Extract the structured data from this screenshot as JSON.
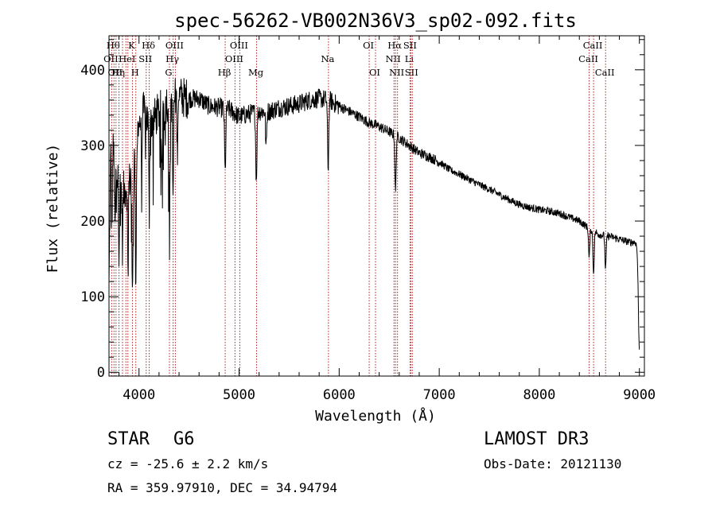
{
  "chart_data": {
    "type": "line",
    "title": "spec-56262-VB002N36V3_sp02-092.fits",
    "xlabel": "Wavelength (Å)",
    "ylabel": "Flux (relative)",
    "xlim": [
      3700,
      9050
    ],
    "ylim": [
      -5,
      445
    ],
    "xticks": [
      4000,
      5000,
      6000,
      7000,
      8000,
      9000
    ],
    "yticks": [
      0,
      100,
      200,
      300,
      400
    ],
    "continuum": [
      [
        3700,
        110
      ],
      [
        3720,
        320
      ],
      [
        3760,
        275
      ],
      [
        3800,
        245
      ],
      [
        3850,
        240
      ],
      [
        3900,
        250
      ],
      [
        3950,
        280
      ],
      [
        4000,
        330
      ],
      [
        4050,
        345
      ],
      [
        4100,
        330
      ],
      [
        4150,
        335
      ],
      [
        4200,
        345
      ],
      [
        4300,
        360
      ],
      [
        4400,
        365
      ],
      [
        4500,
        362
      ],
      [
        4600,
        362
      ],
      [
        4700,
        352
      ],
      [
        4800,
        350
      ],
      [
        4900,
        348
      ],
      [
        5000,
        338
      ],
      [
        5100,
        342
      ],
      [
        5200,
        345
      ],
      [
        5300,
        345
      ],
      [
        5400,
        350
      ],
      [
        5500,
        352
      ],
      [
        5600,
        355
      ],
      [
        5700,
        360
      ],
      [
        5800,
        362
      ],
      [
        5900,
        360
      ],
      [
        6000,
        352
      ],
      [
        6100,
        345
      ],
      [
        6200,
        338
      ],
      [
        6300,
        330
      ],
      [
        6400,
        325
      ],
      [
        6500,
        318
      ],
      [
        6600,
        310
      ],
      [
        6700,
        300
      ],
      [
        6800,
        290
      ],
      [
        6900,
        285
      ],
      [
        7000,
        278
      ],
      [
        7100,
        268
      ],
      [
        7200,
        262
      ],
      [
        7300,
        255
      ],
      [
        7400,
        248
      ],
      [
        7500,
        242
      ],
      [
        7600,
        235
      ],
      [
        7700,
        228
      ],
      [
        7800,
        222
      ],
      [
        7900,
        218
      ],
      [
        8000,
        215
      ],
      [
        8100,
        213
      ],
      [
        8200,
        210
      ],
      [
        8300,
        205
      ],
      [
        8400,
        200
      ],
      [
        8500,
        190
      ],
      [
        8600,
        182
      ],
      [
        8700,
        180
      ],
      [
        8800,
        176
      ],
      [
        8900,
        172
      ],
      [
        8960,
        172
      ],
      [
        9000,
        160
      ]
    ],
    "absorption_features": [
      {
        "x": 3728,
        "depth": 120,
        "width": 5
      },
      {
        "x": 3760,
        "depth": 90,
        "width": 4
      },
      {
        "x": 3800,
        "depth": 80,
        "width": 4
      },
      {
        "x": 3835,
        "depth": 75,
        "width": 4
      },
      {
        "x": 3889,
        "depth": 110,
        "width": 4
      },
      {
        "x": 3934,
        "depth": 175,
        "width": 5
      },
      {
        "x": 3968,
        "depth": 175,
        "width": 5
      },
      {
        "x": 4026,
        "depth": 70,
        "width": 4
      },
      {
        "x": 4101,
        "depth": 110,
        "width": 4
      },
      {
        "x": 4227,
        "depth": 90,
        "width": 4
      },
      {
        "x": 4305,
        "depth": 170,
        "width": 5
      },
      {
        "x": 4340,
        "depth": 130,
        "width": 5
      },
      {
        "x": 4383,
        "depth": 70,
        "width": 4
      },
      {
        "x": 4861,
        "depth": 85,
        "width": 6
      },
      {
        "x": 5172,
        "depth": 90,
        "width": 6
      },
      {
        "x": 5270,
        "depth": 50,
        "width": 5
      },
      {
        "x": 5890,
        "depth": 90,
        "width": 6
      },
      {
        "x": 6563,
        "depth": 75,
        "width": 6
      },
      {
        "x": 8498,
        "depth": 40,
        "width": 6
      },
      {
        "x": 8542,
        "depth": 55,
        "width": 6
      },
      {
        "x": 8662,
        "depth": 45,
        "width": 6
      },
      {
        "x": 9000,
        "depth": 130,
        "width": 10
      }
    ],
    "line_markers": [
      {
        "x": 3727,
        "label": "OII",
        "row": 1
      },
      {
        "x": 3750,
        "label": "Hθ",
        "row": 0
      },
      {
        "x": 3770,
        "label": "OII",
        "row": 2
      },
      {
        "x": 3800,
        "label": "Hη",
        "row": 2
      },
      {
        "x": 3835,
        "label": "",
        "row": 0
      },
      {
        "x": 3869,
        "label": "",
        "row": 1
      },
      {
        "x": 3889,
        "label": "HeI",
        "row": 1
      },
      {
        "x": 3934,
        "label": "K",
        "row": 0
      },
      {
        "x": 3968,
        "label": "H",
        "row": 2
      },
      {
        "x": 4072,
        "label": "SII",
        "row": 1
      },
      {
        "x": 4102,
        "label": "Hδ",
        "row": 0
      },
      {
        "x": 4304,
        "label": "G",
        "row": 2
      },
      {
        "x": 4341,
        "label": "Hγ",
        "row": 1
      },
      {
        "x": 4363,
        "label": "OIII",
        "row": 0
      },
      {
        "x": 4861,
        "label": "Hβ",
        "row": 2
      },
      {
        "x": 4959,
        "label": "OIII",
        "row": 1
      },
      {
        "x": 5007,
        "label": "OIII",
        "row": 0
      },
      {
        "x": 5175,
        "label": "Mg",
        "row": 2
      },
      {
        "x": 5893,
        "label": "Na",
        "row": 1
      },
      {
        "x": 6300,
        "label": "OI",
        "row": 0
      },
      {
        "x": 6363,
        "label": "OI",
        "row": 2
      },
      {
        "x": 6548,
        "label": "NII",
        "row": 1
      },
      {
        "x": 6563,
        "label": "Hα",
        "row": 0
      },
      {
        "x": 6583,
        "label": "NII",
        "row": 2
      },
      {
        "x": 6708,
        "label": "Li",
        "row": 1
      },
      {
        "x": 6716,
        "label": "SII",
        "row": 0
      },
      {
        "x": 6731,
        "label": "SII",
        "row": 2
      },
      {
        "x": 8498,
        "label": "CaII",
        "row": 1
      },
      {
        "x": 8542,
        "label": "CaII",
        "row": 0
      },
      {
        "x": 8662,
        "label": "CaII",
        "row": 2
      }
    ]
  },
  "info": {
    "class_label": "STAR",
    "subclass": "G6",
    "redshift": "cz = -25.6 ± 2.2 km/s",
    "coords": "RA = 359.97910, DEC =  34.94794",
    "survey": "LAMOST DR3",
    "obs_date": "Obs-Date: 20121130"
  },
  "colors": {
    "spectrum": "#000000",
    "marker": "#b22222"
  }
}
